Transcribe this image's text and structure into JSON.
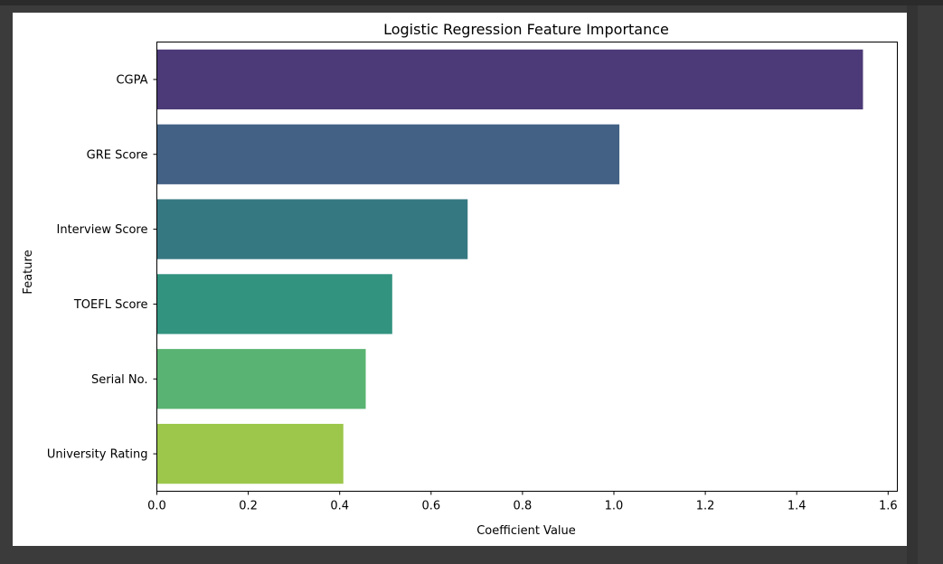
{
  "chart_data": {
    "type": "bar",
    "orientation": "horizontal",
    "title": "Logistic Regression Feature Importance",
    "xlabel": "Coefficient Value",
    "ylabel": "Feature",
    "categories": [
      "CGPA",
      "GRE Score",
      "Interview Score",
      "TOEFL Score",
      "Serial No.",
      "University Rating"
    ],
    "values": [
      1.545,
      1.012,
      0.68,
      0.515,
      0.457,
      0.408
    ],
    "colors": [
      "#4b3a77",
      "#426184",
      "#367882",
      "#32937f",
      "#59b372",
      "#9cc74b"
    ],
    "xlim": [
      0,
      1.62
    ],
    "xticks": [
      "0.0",
      "0.2",
      "0.4",
      "0.6",
      "0.8",
      "1.0",
      "1.2",
      "1.4",
      "1.6"
    ],
    "grid": false,
    "legend": "none"
  }
}
